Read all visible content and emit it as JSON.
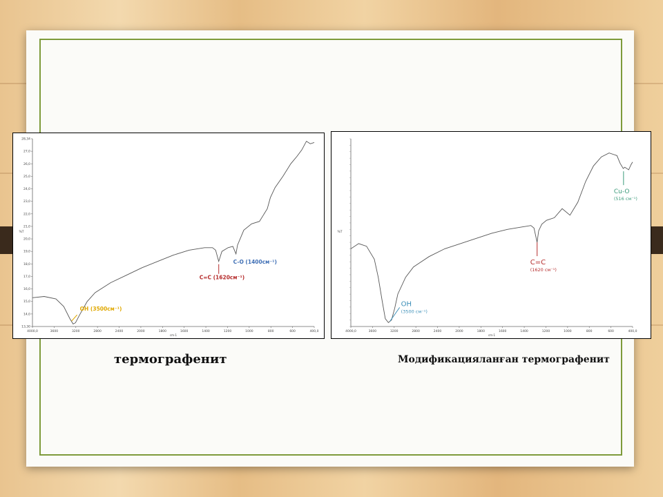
{
  "colors": {
    "oh_left": "#e0a800",
    "cc": "#b52b2b",
    "co": "#3f6fb5",
    "oh_right": "#3c8fb8",
    "cuo": "#3b9a7a",
    "curve": "#555555"
  },
  "captions": {
    "left": "термографенит",
    "right": "Модификацияланған термографенит"
  },
  "chart_data": [
    {
      "type": "line",
      "title": "",
      "ylabel": "%T",
      "xlabel": "cm-1",
      "xlim": [
        4000,
        400
      ],
      "ylim": [
        13.3,
        28.3
      ],
      "x_ticks": [
        "4000,0",
        "3600",
        "3200",
        "2800",
        "2400",
        "2000",
        "1800",
        "1600",
        "1400",
        "1200",
        "1000",
        "800",
        "600",
        "400,0"
      ],
      "y_ticks": [
        "13,30",
        "14,0",
        "15,0",
        "16,0",
        "17,0",
        "18,0",
        "19,0",
        "20,0",
        "21,0",
        "22,0",
        "23,0",
        "24,0",
        "25,0",
        "26,0",
        "27,0",
        "28,34"
      ],
      "x": [
        4000,
        3850,
        3700,
        3600,
        3520,
        3480,
        3450,
        3400,
        3300,
        3200,
        3000,
        2800,
        2600,
        2400,
        2200,
        2000,
        1800,
        1700,
        1660,
        1620,
        1580,
        1500,
        1440,
        1400,
        1380,
        1300,
        1200,
        1100,
        1000,
        960,
        900,
        800,
        700,
        620,
        560,
        500,
        450,
        400
      ],
      "y": [
        15.6,
        15.7,
        15.5,
        14.9,
        13.9,
        13.5,
        13.6,
        14.2,
        15.3,
        16.0,
        16.8,
        17.4,
        18.0,
        18.5,
        19.0,
        19.4,
        19.6,
        19.6,
        19.4,
        18.5,
        19.3,
        19.6,
        19.7,
        19.1,
        19.8,
        21.0,
        21.5,
        21.7,
        22.7,
        23.6,
        24.4,
        25.3,
        26.3,
        26.9,
        27.4,
        28.1,
        27.9,
        28.0
      ],
      "annotations": [
        {
          "label": "OH (3500см⁻¹)",
          "x": 3500,
          "color": "#e0a800"
        },
        {
          "label": "C=C (1620см⁻¹)",
          "x": 1620,
          "color": "#b52b2b"
        },
        {
          "label": "C-O (1400см⁻¹)",
          "x": 1400,
          "color": "#3f6fb5"
        }
      ]
    },
    {
      "type": "line",
      "title": "",
      "ylabel": "%T",
      "xlabel": "cm-1",
      "xlim": [
        4000,
        400
      ],
      "x_ticks": [
        "4000,0",
        "3600",
        "3200",
        "2800",
        "2400",
        "2000",
        "1800",
        "1600",
        "1400",
        "1200",
        "1000",
        "800",
        "600",
        "400,0"
      ],
      "x": [
        4000,
        3900,
        3800,
        3700,
        3650,
        3600,
        3560,
        3520,
        3480,
        3440,
        3400,
        3300,
        3200,
        3000,
        2800,
        2600,
        2400,
        2200,
        2000,
        1800,
        1700,
        1660,
        1620,
        1600,
        1560,
        1500,
        1400,
        1300,
        1200,
        1100,
        1000,
        900,
        800,
        700,
        600,
        560,
        520,
        500,
        450,
        420,
        400
      ],
      "y": [
        19.0,
        19.4,
        19.2,
        18.2,
        16.8,
        15.0,
        13.6,
        13.3,
        13.5,
        14.4,
        15.5,
        16.8,
        17.6,
        18.4,
        19.0,
        19.4,
        19.8,
        20.2,
        20.5,
        20.7,
        20.8,
        20.6,
        19.5,
        20.4,
        20.9,
        21.2,
        21.4,
        22.1,
        21.6,
        22.6,
        24.2,
        25.4,
        26.1,
        26.4,
        26.2,
        25.6,
        25.2,
        25.3,
        25.1,
        25.5,
        25.7
      ],
      "annotations": [
        {
          "label": "OH",
          "sub": "(3500 см⁻¹)",
          "x": 3500,
          "color": "#3c8fb8"
        },
        {
          "label": "C=C",
          "sub": "(1620 см⁻¹)",
          "x": 1620,
          "color": "#b52b2b"
        },
        {
          "label": "Cu-O",
          "sub": "(516 см⁻¹)",
          "x": 516,
          "color": "#3b9a7a"
        }
      ]
    }
  ]
}
